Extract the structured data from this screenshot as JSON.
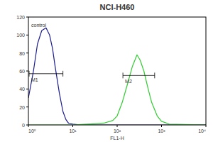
{
  "chart_data": {
    "type": "line",
    "title": "NCI-H460",
    "x_label": "FL1-H",
    "log": "x",
    "xlim": [
      1,
      10000
    ],
    "xticks": [
      {
        "value": 1,
        "label": "10⁰"
      },
      {
        "value": 10,
        "label": "10¹"
      },
      {
        "value": 100,
        "label": "10²"
      },
      {
        "value": 1000,
        "label": "10³"
      },
      {
        "value": 10000,
        "label": "10⁴"
      }
    ],
    "ylim": [
      0,
      120
    ],
    "yticks": [
      0,
      20,
      40,
      60,
      80,
      100,
      120
    ],
    "series": [
      {
        "name": "control",
        "color": "#1c1c8f",
        "x": [
          1,
          1.3,
          1.6,
          2,
          2.5,
          3,
          3.5,
          4,
          5,
          6,
          7,
          8,
          10,
          15,
          30,
          100,
          1000,
          10000
        ],
        "values": [
          30,
          60,
          90,
          105,
          108,
          100,
          85,
          65,
          35,
          15,
          6,
          2,
          1,
          0,
          0,
          0,
          0,
          0
        ]
      },
      {
        "color": "#33cc33",
        "x": [
          1,
          10,
          50,
          80,
          100,
          130,
          170,
          220,
          280,
          330,
          400,
          500,
          600,
          800,
          1000,
          1500,
          10000
        ],
        "values": [
          0,
          0,
          2,
          5,
          10,
          25,
          45,
          65,
          78,
          72,
          60,
          40,
          25,
          10,
          4,
          1,
          0
        ]
      }
    ],
    "gates": [
      {
        "label": "M1",
        "x": [
          1,
          6
        ],
        "y": 57
      },
      {
        "label": "M2",
        "x": [
          130,
          700
        ],
        "y": 55
      }
    ]
  }
}
